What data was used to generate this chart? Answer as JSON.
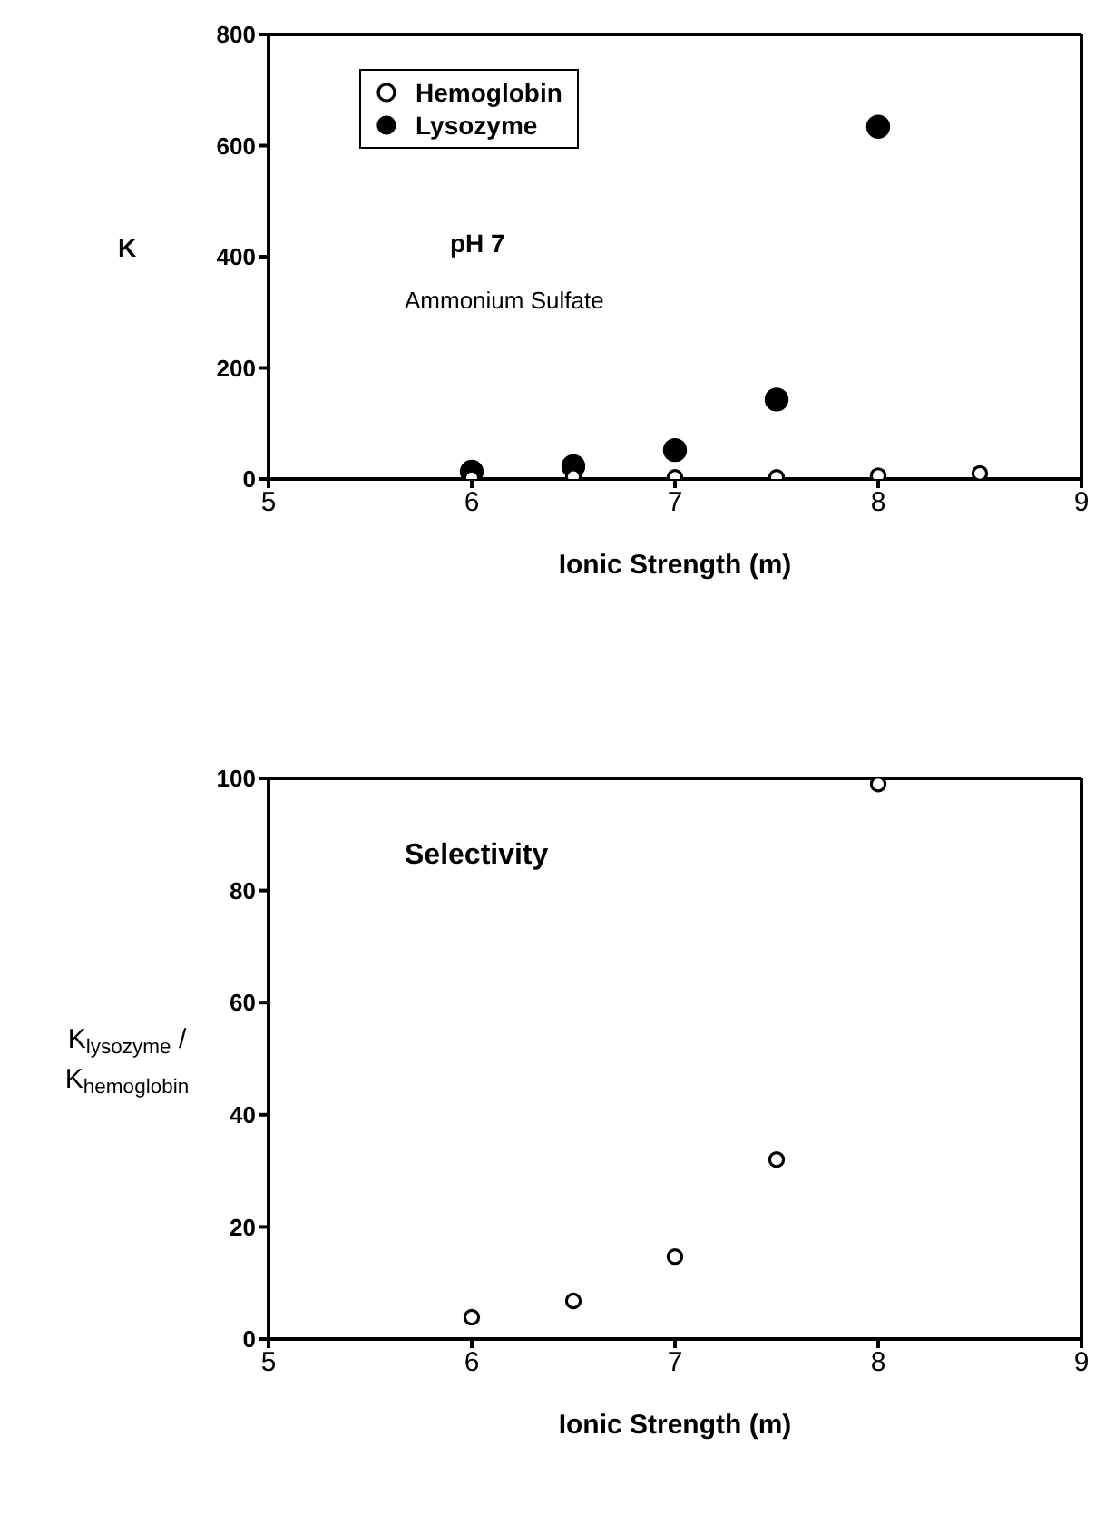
{
  "chart_data": [
    {
      "type": "scatter",
      "xlabel": "Ionic Strength (m)",
      "ylabel": "K",
      "x": [
        6,
        6.5,
        7,
        7.5,
        8,
        8.5
      ],
      "xlim": [
        5,
        9
      ],
      "xticks": [
        5,
        6,
        7,
        8,
        9
      ],
      "ylim": [
        0,
        800
      ],
      "yticks": [
        0,
        200,
        400,
        600,
        800
      ],
      "legend": "top left",
      "marker": "circle",
      "grid": false,
      "series": [
        {
          "name": "Hemoglobin",
          "color": "#ffffff",
          "values": [
            2,
            4,
            3,
            3,
            6,
            10
          ]
        },
        {
          "name": "Lysozyme",
          "color": "#000000",
          "values": [
            13,
            23,
            52,
            143,
            634,
            null
          ]
        }
      ],
      "annotations": [
        "pH 7",
        "Ammonium Sulfate"
      ]
    },
    {
      "type": "scatter",
      "xlabel": "Ionic Strength (m)",
      "ylabel": "K$_{lysozyme}$ / K$_{hemoglobin}$",
      "x": [
        6,
        6.5,
        7,
        7.5,
        8
      ],
      "xlim": [
        5,
        9
      ],
      "xticks": [
        5,
        6,
        7,
        8,
        9
      ],
      "ylim": [
        0,
        100
      ],
      "yticks": [
        0,
        20,
        40,
        60,
        80,
        100
      ],
      "marker": "circle",
      "grid": false,
      "series": [
        {
          "color": "#ffffff",
          "values": [
            3.9,
            6.8,
            14.7,
            32,
            99
          ]
        }
      ],
      "annotations": [
        "Selectivity"
      ]
    }
  ]
}
